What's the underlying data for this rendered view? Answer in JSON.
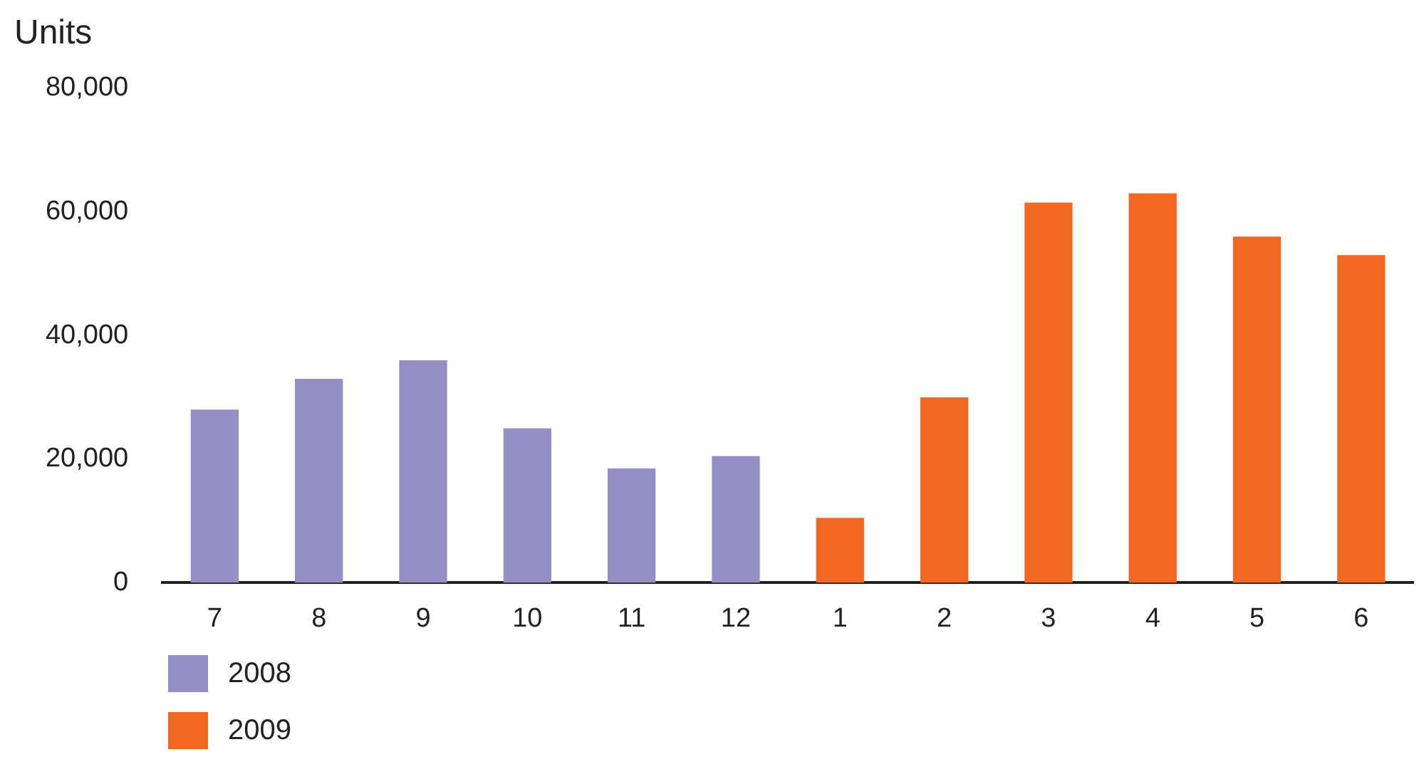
{
  "chart_data": {
    "type": "bar",
    "ylabel": "Units",
    "categories": [
      "7",
      "8",
      "9",
      "10",
      "11",
      "12",
      "1",
      "2",
      "3",
      "4",
      "5",
      "6"
    ],
    "series": [
      {
        "name": "2008",
        "color": "#9490c5",
        "values": [
          28000,
          33000,
          36000,
          25000,
          18500,
          20500,
          null,
          null,
          null,
          null,
          null,
          null
        ]
      },
      {
        "name": "2009",
        "color": "#f46722",
        "values": [
          null,
          null,
          null,
          null,
          null,
          null,
          10500,
          30000,
          61500,
          63000,
          56000,
          53000
        ]
      }
    ],
    "stacked": true,
    "ylim": [
      0,
      80000
    ],
    "yticks": [
      0,
      {
        "value": 20000,
        "label": "20,000"
      },
      {
        "value": 40000,
        "label": "40,000"
      },
      {
        "value": 60000,
        "label": "60,000"
      },
      {
        "value": 80000,
        "label": "80,000"
      }
    ],
    "grid": false,
    "legend": "bottom"
  }
}
